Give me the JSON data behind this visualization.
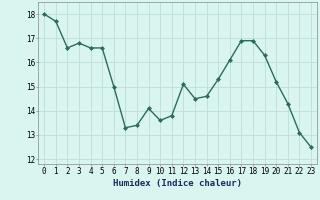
{
  "x": [
    0,
    1,
    2,
    3,
    4,
    5,
    6,
    7,
    8,
    9,
    10,
    11,
    12,
    13,
    14,
    15,
    16,
    17,
    18,
    19,
    20,
    21,
    22,
    23
  ],
  "y": [
    18.0,
    17.7,
    16.6,
    16.8,
    16.6,
    16.6,
    15.0,
    13.3,
    13.4,
    14.1,
    13.6,
    13.8,
    15.1,
    14.5,
    14.6,
    15.3,
    16.1,
    16.9,
    16.9,
    16.3,
    15.2,
    14.3,
    13.1,
    12.5
  ],
  "line_color": "#2d6b5e",
  "marker": "D",
  "marker_size": 2.0,
  "bg_color": "#d9f5f0",
  "grid_color": "#c0ddd8",
  "xlabel": "Humidex (Indice chaleur)",
  "xlim": [
    -0.5,
    23.5
  ],
  "ylim": [
    11.8,
    18.5
  ],
  "yticks": [
    12,
    13,
    14,
    15,
    16,
    17,
    18
  ],
  "xticks": [
    0,
    1,
    2,
    3,
    4,
    5,
    6,
    7,
    8,
    9,
    10,
    11,
    12,
    13,
    14,
    15,
    16,
    17,
    18,
    19,
    20,
    21,
    22,
    23
  ],
  "xtick_labels": [
    "0",
    "1",
    "2",
    "3",
    "4",
    "5",
    "6",
    "7",
    "8",
    "9",
    "10",
    "11",
    "12",
    "13",
    "14",
    "15",
    "16",
    "17",
    "18",
    "19",
    "20",
    "21",
    "22",
    "23"
  ],
  "xlabel_fontsize": 6.5,
  "tick_fontsize": 5.5,
  "linewidth": 1.0
}
